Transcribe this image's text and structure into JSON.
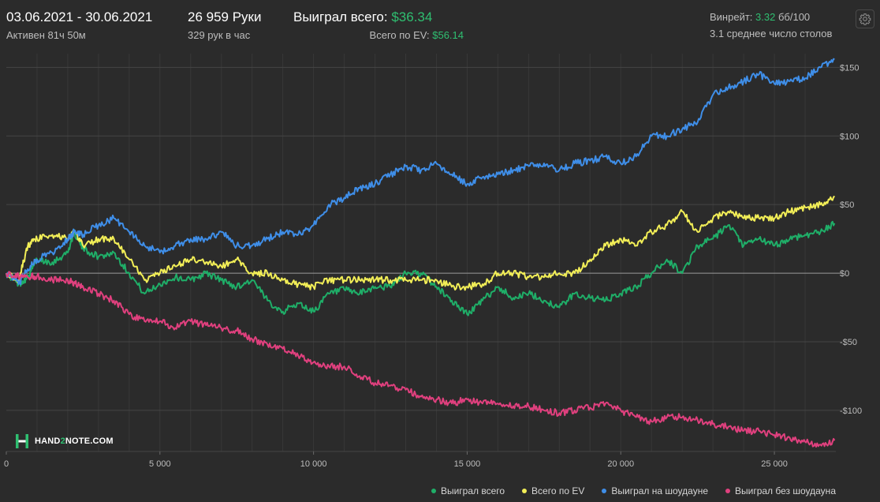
{
  "header": {
    "date_range": "03.06.2021 - 30.06.2021",
    "active_time": "Активен 81ч 50м",
    "hands": "26 959 Руки",
    "hands_per_hour": "329 рук в час",
    "won_total_label": "Выиграл всего:",
    "won_total_value": "$36.34",
    "ev_total_label": "Всего по EV:",
    "ev_total_value": "$56.14",
    "winrate_label": "Винрейт:",
    "winrate_value": "3.32",
    "winrate_unit": "бб/100",
    "avg_tables": "3.1 среднее число столов"
  },
  "icons": {
    "settings": "gear-icon",
    "logo": "hand2note-logo-icon"
  },
  "logo": {
    "text_before": "HAND",
    "text_accent": "2",
    "text_after": "NOTE.COM"
  },
  "colors": {
    "background": "#2b2b2b",
    "accent_green": "#2fbf71",
    "grid": "#454545",
    "zero_line": "#9a9a9a"
  },
  "chart_data": {
    "type": "line",
    "xlim": [
      0,
      27000
    ],
    "ylim": [
      -130,
      160
    ],
    "xticks": [
      0,
      5000,
      10000,
      15000,
      20000,
      25000
    ],
    "xtick_labels": [
      "0",
      "5 000",
      "10 000",
      "15 000",
      "20 000",
      "25 000"
    ],
    "yticks": [
      150,
      100,
      50,
      0,
      -50,
      -100
    ],
    "ytick_labels": [
      "$150",
      "$100",
      "$50",
      "$0",
      "-$50",
      "-$100"
    ],
    "grid": true,
    "legend_position": "bottom-right",
    "series": [
      {
        "name": "Выиграл всего",
        "color": "#1fae68",
        "x": [
          0,
          400,
          700,
          1000,
          1500,
          2000,
          2200,
          2500,
          3000,
          3500,
          4000,
          4500,
          5000,
          5500,
          6000,
          6500,
          7000,
          7500,
          8000,
          8500,
          9000,
          9500,
          10000,
          10500,
          11000,
          11500,
          12000,
          12500,
          13000,
          13500,
          14000,
          14500,
          15000,
          15500,
          16000,
          16500,
          17000,
          17500,
          18000,
          18500,
          19000,
          19500,
          20000,
          20500,
          21000,
          21500,
          22000,
          22500,
          23000,
          23500,
          24000,
          24500,
          25000,
          25500,
          26000,
          26500,
          26959
        ],
        "y": [
          0,
          -8,
          -3,
          10,
          8,
          15,
          30,
          18,
          12,
          15,
          0,
          -15,
          -8,
          -3,
          -5,
          0,
          -5,
          -10,
          -5,
          -20,
          -28,
          -22,
          -28,
          -15,
          -12,
          -15,
          -10,
          -10,
          0,
          0,
          -10,
          -20,
          -30,
          -20,
          -10,
          -18,
          -15,
          -20,
          -25,
          -15,
          -18,
          -20,
          -15,
          -10,
          0,
          10,
          0,
          20,
          25,
          35,
          20,
          25,
          20,
          25,
          28,
          30,
          36.34
        ]
      },
      {
        "name": "Всего по EV",
        "color": "#f2ee57",
        "x": [
          0,
          400,
          700,
          1000,
          1500,
          2000,
          2200,
          2500,
          3000,
          3500,
          4000,
          4500,
          5000,
          5500,
          6000,
          6500,
          7000,
          7500,
          8000,
          8500,
          9000,
          9500,
          10000,
          10500,
          11000,
          11500,
          12000,
          12500,
          13000,
          13500,
          14000,
          14500,
          15000,
          15500,
          16000,
          16500,
          17000,
          17500,
          18000,
          18500,
          19000,
          19500,
          20000,
          20500,
          21000,
          21500,
          22000,
          22500,
          23000,
          23500,
          24000,
          24500,
          25000,
          25500,
          26000,
          26500,
          26959
        ],
        "y": [
          0,
          -5,
          20,
          25,
          28,
          25,
          30,
          20,
          25,
          25,
          10,
          -5,
          0,
          5,
          10,
          8,
          5,
          10,
          0,
          0,
          -5,
          -8,
          -10,
          -5,
          -5,
          -5,
          -5,
          -5,
          -5,
          -5,
          -5,
          -10,
          -10,
          -8,
          0,
          0,
          -3,
          -3,
          0,
          0,
          10,
          20,
          25,
          20,
          30,
          35,
          45,
          30,
          40,
          45,
          40,
          40,
          40,
          45,
          48,
          50,
          56.14
        ]
      },
      {
        "name": "Выиграл на шоудауне",
        "color": "#3f8ee8",
        "x": [
          0,
          400,
          700,
          1000,
          1500,
          2000,
          2200,
          2500,
          3000,
          3500,
          4000,
          4500,
          5000,
          5500,
          6000,
          6500,
          7000,
          7500,
          8000,
          8500,
          9000,
          9500,
          10000,
          10500,
          11000,
          11500,
          12000,
          12500,
          13000,
          13500,
          14000,
          14500,
          15000,
          15500,
          16000,
          16500,
          17000,
          17500,
          18000,
          18500,
          19000,
          19500,
          20000,
          20500,
          21000,
          21500,
          22000,
          22500,
          23000,
          23500,
          24000,
          24500,
          25000,
          25500,
          26000,
          26500,
          26959
        ],
        "y": [
          0,
          -8,
          3,
          10,
          15,
          25,
          30,
          28,
          35,
          40,
          30,
          20,
          15,
          20,
          25,
          25,
          30,
          20,
          20,
          25,
          30,
          28,
          35,
          50,
          55,
          62,
          65,
          72,
          78,
          75,
          80,
          72,
          65,
          70,
          72,
          75,
          78,
          80,
          75,
          80,
          82,
          85,
          80,
          85,
          100,
          100,
          105,
          110,
          130,
          135,
          140,
          145,
          138,
          140,
          142,
          150,
          156
        ]
      },
      {
        "name": "Выиграл без шоудауна",
        "color": "#e0407e",
        "x": [
          0,
          400,
          700,
          1000,
          1500,
          2000,
          2200,
          2500,
          3000,
          3500,
          4000,
          4500,
          5000,
          5500,
          6000,
          6500,
          7000,
          7500,
          8000,
          8500,
          9000,
          9500,
          10000,
          10500,
          11000,
          11500,
          12000,
          12500,
          13000,
          13500,
          14000,
          14500,
          15000,
          15500,
          16000,
          16500,
          17000,
          17500,
          18000,
          18500,
          19000,
          19500,
          20000,
          20500,
          21000,
          21500,
          22000,
          22500,
          23000,
          23500,
          24000,
          24500,
          25000,
          25500,
          26000,
          26500,
          26959
        ],
        "y": [
          0,
          -2,
          -3,
          -2,
          -5,
          -5,
          -7,
          -10,
          -15,
          -20,
          -30,
          -35,
          -35,
          -40,
          -35,
          -38,
          -40,
          -42,
          -48,
          -52,
          -55,
          -60,
          -65,
          -68,
          -68,
          -75,
          -80,
          -82,
          -85,
          -90,
          -92,
          -95,
          -92,
          -95,
          -95,
          -97,
          -97,
          -100,
          -102,
          -100,
          -98,
          -95,
          -100,
          -105,
          -108,
          -105,
          -105,
          -107,
          -110,
          -112,
          -115,
          -115,
          -118,
          -120,
          -123,
          -125,
          -122
        ]
      }
    ]
  }
}
